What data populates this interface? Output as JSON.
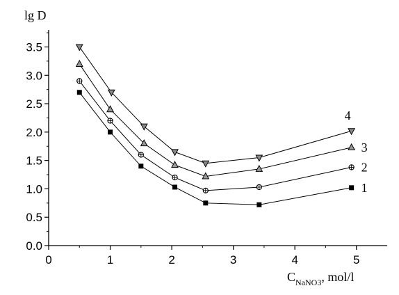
{
  "chart_data": {
    "type": "line",
    "ylabel": "lg D",
    "xlabel_main": "C",
    "xlabel_sub": "NaNO3",
    "xlabel_unit": ", mol/l",
    "xlim": [
      0,
      5.5
    ],
    "ylim": [
      0.0,
      3.8
    ],
    "x_ticks": [
      "0",
      "1",
      "2",
      "3",
      "4",
      "5"
    ],
    "y_ticks": [
      "0.0",
      "0.5",
      "1.0",
      "1.5",
      "2.0",
      "2.5",
      "3.0",
      "3.5"
    ],
    "grid": false,
    "series": [
      {
        "name": "1",
        "marker": "square",
        "x": [
          0.5,
          1.0,
          1.5,
          2.05,
          2.55,
          3.42,
          4.92
        ],
        "y": [
          2.7,
          2.0,
          1.4,
          1.03,
          0.75,
          0.72,
          1.02
        ]
      },
      {
        "name": "2",
        "marker": "circle",
        "x": [
          0.5,
          1.0,
          1.5,
          2.05,
          2.55,
          3.42,
          4.92
        ],
        "y": [
          2.9,
          2.2,
          1.6,
          1.2,
          0.97,
          1.03,
          1.38
        ]
      },
      {
        "name": "3",
        "marker": "triangle-up",
        "x": [
          0.5,
          1.0,
          1.55,
          2.05,
          2.55,
          3.42,
          4.92
        ],
        "y": [
          3.2,
          2.4,
          1.8,
          1.42,
          1.22,
          1.35,
          1.73
        ]
      },
      {
        "name": "4",
        "marker": "triangle-down",
        "x": [
          0.5,
          1.02,
          1.55,
          2.05,
          2.55,
          3.42,
          4.92
        ],
        "y": [
          3.5,
          2.7,
          2.1,
          1.65,
          1.45,
          1.55,
          2.02
        ]
      }
    ]
  }
}
